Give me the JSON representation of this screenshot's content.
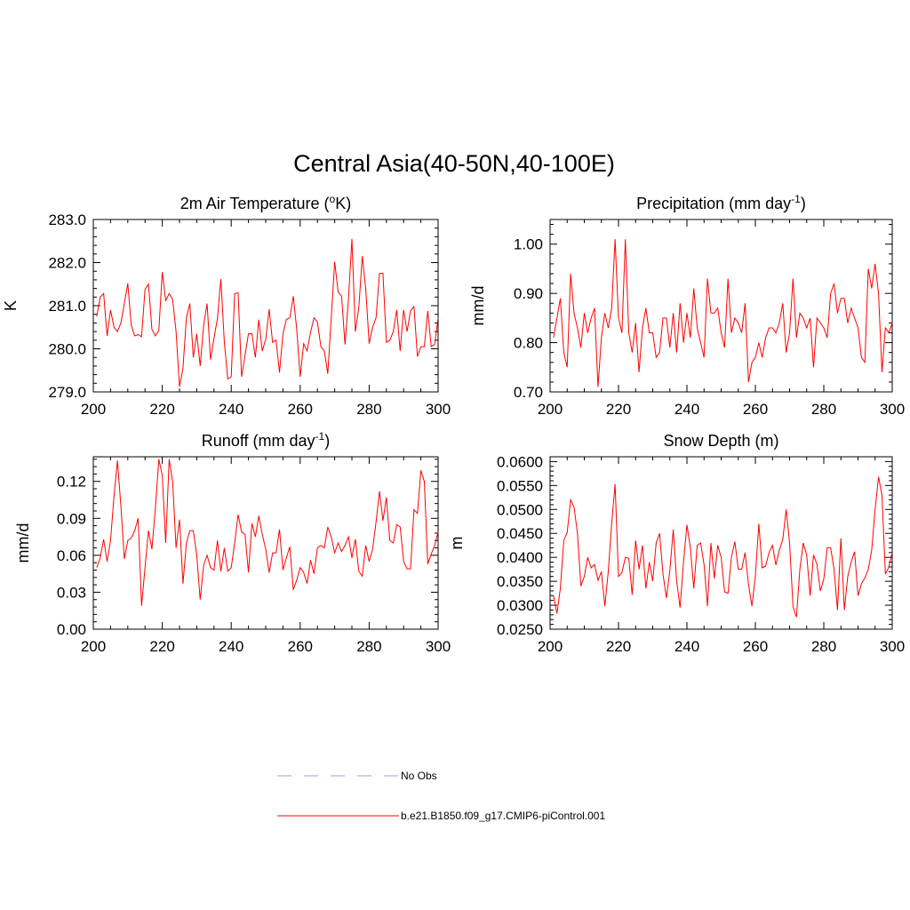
{
  "figure": {
    "title": "Central Asia(40-50N,40-100E)"
  },
  "chart_data": [
    {
      "type": "line",
      "title": "2m Air Temperature (",
      "title_sup": "o",
      "title_after_sup": "K)",
      "xlabel": "",
      "ylabel": "K",
      "xlim": [
        200,
        300
      ],
      "ylim": [
        279.0,
        283.0
      ],
      "xticks": [
        "200",
        "220",
        "240",
        "260",
        "280",
        "300"
      ],
      "yticks": [
        "279.0",
        "280.0",
        "281.0",
        "282.0",
        "283.0"
      ],
      "grid": false,
      "series": [
        {
          "name": "b.e21.B1850.f09_g17.CMIP6-piControl.001",
          "color": "#ff0000",
          "x_start": 201,
          "values": [
            280.75,
            281.2,
            281.28,
            280.3,
            280.9,
            280.5,
            280.4,
            280.6,
            281.05,
            281.52,
            280.55,
            280.3,
            280.33,
            280.28,
            281.38,
            281.5,
            280.45,
            280.3,
            280.42,
            281.78,
            281.12,
            281.28,
            281.15,
            280.4,
            279.12,
            279.55,
            280.72,
            281.05,
            279.8,
            280.35,
            279.6,
            280.55,
            281.05,
            279.75,
            280.25,
            280.7,
            281.62,
            280.15,
            279.3,
            279.35,
            281.28,
            281.3,
            279.35,
            279.85,
            280.35,
            280.35,
            279.8,
            280.68,
            279.95,
            280.22,
            280.92,
            280.15,
            280.2,
            279.45,
            280.35,
            280.68,
            280.72,
            281.22,
            280.45,
            279.35,
            280.12,
            279.95,
            280.38,
            280.72,
            280.62,
            280.05,
            279.95,
            279.42,
            280.7,
            282.02,
            281.32,
            281.22,
            280.1,
            281.15,
            282.55,
            280.4,
            280.95,
            282.15,
            281.4,
            280.12,
            280.5,
            280.72,
            281.75,
            281.75,
            280.15,
            280.2,
            280.4,
            280.9,
            279.95,
            280.9,
            280.4,
            280.88,
            280.98,
            279.82,
            280.05,
            280.05,
            280.88,
            280.05,
            280.1,
            280.72
          ]
        }
      ]
    },
    {
      "type": "line",
      "title": "Precipitation (mm day",
      "title_sup": "-1",
      "title_after_sup": ")",
      "xlabel": "",
      "ylabel": "mm/d",
      "xlim": [
        200,
        300
      ],
      "ylim": [
        0.7,
        1.05
      ],
      "xticks": [
        "200",
        "220",
        "240",
        "260",
        "280",
        "300"
      ],
      "yticks": [
        "0.70",
        "0.80",
        "0.90",
        "1.00"
      ],
      "grid": false,
      "series": [
        {
          "name": "b.e21.B1850.f09_g17.CMIP6-piControl.001",
          "color": "#ff0000",
          "x_start": 201,
          "values": [
            0.81,
            0.85,
            0.89,
            0.78,
            0.75,
            0.94,
            0.86,
            0.83,
            0.79,
            0.86,
            0.82,
            0.85,
            0.87,
            0.71,
            0.81,
            0.86,
            0.83,
            0.87,
            1.01,
            0.85,
            0.82,
            1.01,
            0.82,
            0.78,
            0.84,
            0.74,
            0.83,
            0.87,
            0.82,
            0.82,
            0.77,
            0.78,
            0.85,
            0.85,
            0.79,
            0.86,
            0.78,
            0.88,
            0.8,
            0.86,
            0.81,
            0.91,
            0.83,
            0.8,
            0.77,
            0.93,
            0.86,
            0.86,
            0.87,
            0.82,
            0.79,
            0.93,
            0.82,
            0.85,
            0.84,
            0.82,
            0.88,
            0.72,
            0.76,
            0.77,
            0.8,
            0.77,
            0.81,
            0.83,
            0.83,
            0.82,
            0.84,
            0.88,
            0.78,
            0.82,
            0.93,
            0.81,
            0.86,
            0.85,
            0.83,
            0.85,
            0.75,
            0.85,
            0.84,
            0.83,
            0.81,
            0.9,
            0.92,
            0.86,
            0.89,
            0.89,
            0.84,
            0.87,
            0.85,
            0.83,
            0.77,
            0.76,
            0.95,
            0.91,
            0.96,
            0.9,
            0.74,
            0.83,
            0.82,
            0.84
          ]
        }
      ]
    },
    {
      "type": "line",
      "title": "Runoff (mm day",
      "title_sup": "-1",
      "title_after_sup": ")",
      "xlabel": "",
      "ylabel": "mm/d",
      "xlim": [
        200,
        300
      ],
      "ylim": [
        0.0,
        0.14
      ],
      "xticks": [
        "200",
        "220",
        "240",
        "260",
        "280",
        "300"
      ],
      "yticks": [
        "0.00",
        "0.03",
        "0.06",
        "0.09",
        "0.12"
      ],
      "grid": false,
      "series": [
        {
          "name": "b.e21.B1850.f09_g17.CMIP6-piControl.001",
          "color": "#ff0000",
          "x_start": 201,
          "values": [
            0.05,
            0.058,
            0.073,
            0.055,
            0.072,
            0.108,
            0.137,
            0.1,
            0.057,
            0.072,
            0.074,
            0.08,
            0.09,
            0.019,
            0.05,
            0.08,
            0.065,
            0.098,
            0.138,
            0.125,
            0.07,
            0.138,
            0.12,
            0.066,
            0.089,
            0.037,
            0.07,
            0.08,
            0.08,
            0.06,
            0.024,
            0.052,
            0.06,
            0.05,
            0.048,
            0.072,
            0.047,
            0.066,
            0.047,
            0.05,
            0.07,
            0.093,
            0.079,
            0.077,
            0.046,
            0.086,
            0.075,
            0.092,
            0.077,
            0.065,
            0.046,
            0.062,
            0.062,
            0.081,
            0.048,
            0.058,
            0.067,
            0.032,
            0.04,
            0.05,
            0.046,
            0.037,
            0.056,
            0.045,
            0.066,
            0.068,
            0.066,
            0.083,
            0.075,
            0.062,
            0.07,
            0.063,
            0.068,
            0.075,
            0.058,
            0.073,
            0.047,
            0.043,
            0.068,
            0.055,
            0.065,
            0.087,
            0.112,
            0.088,
            0.107,
            0.072,
            0.07,
            0.085,
            0.083,
            0.055,
            0.049,
            0.049,
            0.097,
            0.094,
            0.129,
            0.12,
            0.053,
            0.061,
            0.068,
            0.079
          ]
        }
      ]
    },
    {
      "type": "line",
      "title": "Snow Depth (m)",
      "title_sup": "",
      "title_after_sup": "",
      "xlabel": "",
      "ylabel": "m",
      "xlim": [
        200,
        300
      ],
      "ylim": [
        0.025,
        0.061
      ],
      "xticks": [
        "200",
        "220",
        "240",
        "260",
        "280",
        "300"
      ],
      "yticks": [
        "0.0250",
        "0.0300",
        "0.0350",
        "0.0400",
        "0.0450",
        "0.0500",
        "0.0550",
        "0.0600"
      ],
      "grid": false,
      "series": [
        {
          "name": "b.e21.B1850.f09_g17.CMIP6-piControl.001",
          "color": "#ff0000",
          "x_start": 201,
          "values": [
            0.032,
            0.0283,
            0.0335,
            0.0435,
            0.0452,
            0.052,
            0.0505,
            0.045,
            0.034,
            0.036,
            0.04,
            0.0378,
            0.0385,
            0.0352,
            0.037,
            0.0298,
            0.037,
            0.047,
            0.0553,
            0.036,
            0.0368,
            0.04,
            0.0398,
            0.0322,
            0.0435,
            0.0375,
            0.0425,
            0.0335,
            0.039,
            0.035,
            0.043,
            0.045,
            0.0365,
            0.0315,
            0.0372,
            0.0458,
            0.035,
            0.0295,
            0.039,
            0.0468,
            0.042,
            0.0335,
            0.0425,
            0.043,
            0.0385,
            0.0298,
            0.043,
            0.0356,
            0.0425,
            0.04,
            0.0328,
            0.0325,
            0.04,
            0.0433,
            0.0375,
            0.0375,
            0.041,
            0.0343,
            0.0298,
            0.036,
            0.047,
            0.0378,
            0.0382,
            0.041,
            0.0425,
            0.0384,
            0.0415,
            0.0437,
            0.05,
            0.043,
            0.0297,
            0.0275,
            0.0375,
            0.043,
            0.0405,
            0.032,
            0.0405,
            0.0385,
            0.033,
            0.0355,
            0.042,
            0.042,
            0.0375,
            0.029,
            0.044,
            0.029,
            0.036,
            0.039,
            0.0412,
            0.032,
            0.0345,
            0.0357,
            0.0375,
            0.0415,
            0.05,
            0.0568,
            0.053,
            0.0365,
            0.038,
            0.041
          ]
        }
      ]
    }
  ],
  "legend": {
    "placement": "bottom-center",
    "items": [
      {
        "label": "No Obs",
        "color": "#9999ff",
        "dashed": true
      },
      {
        "label": "b.e21.B1850.f09_g17.CMIP6-piControl.001",
        "color": "#ff0000",
        "dashed": false
      }
    ]
  }
}
